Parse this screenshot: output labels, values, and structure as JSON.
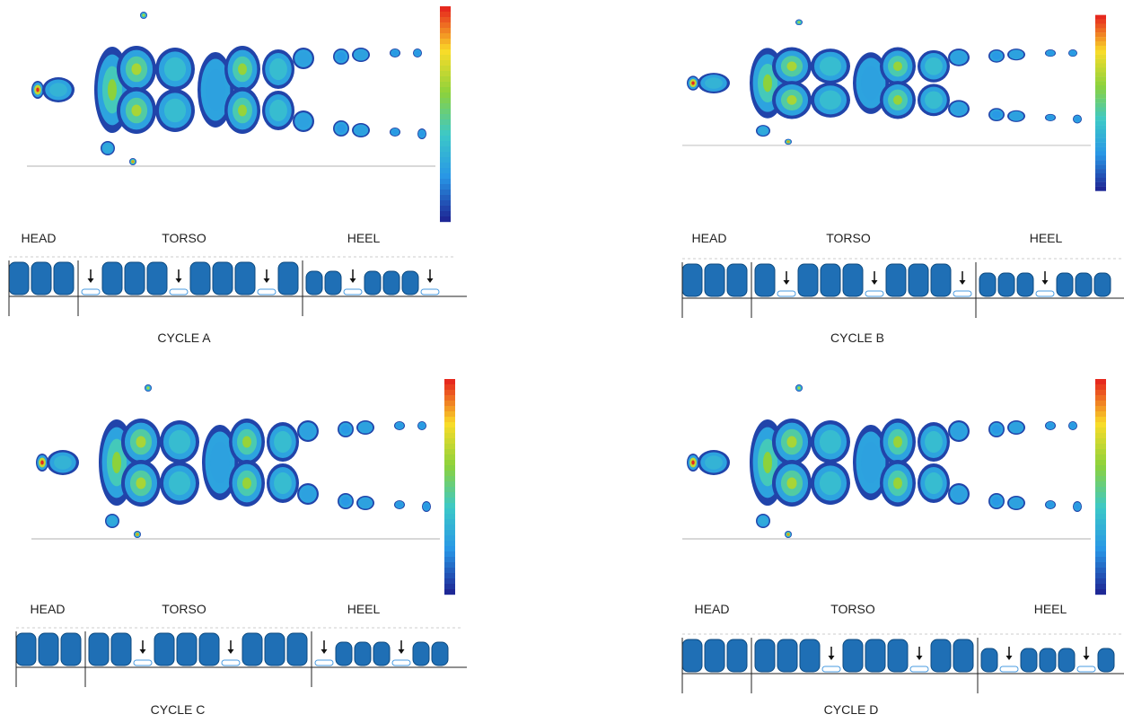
{
  "zone_labels": {
    "head": "HEAD",
    "torso": "TORSO",
    "heel": "HEEL"
  },
  "colors": {
    "cell": "#1f6fb5",
    "cell_border": "#0d4a80",
    "deflated_border": "#4a9be0",
    "arrow": "#111111",
    "line": "#222222"
  },
  "cycles": [
    {
      "label": "CYCLE A",
      "cells": [
        "I",
        "I",
        "I",
        "|",
        "D",
        "I",
        "I",
        "I",
        "D",
        "I",
        "I",
        "I",
        "D",
        "I",
        "|",
        "i",
        "i",
        "d",
        "i",
        "i",
        "i",
        "d"
      ]
    },
    {
      "label": "CYCLE B",
      "cells": [
        "I",
        "I",
        "I",
        "|",
        "I",
        "D",
        "I",
        "I",
        "I",
        "D",
        "I",
        "I",
        "I",
        "D",
        "|",
        "i",
        "i",
        "i",
        "d",
        "i",
        "i",
        "i"
      ]
    },
    {
      "label": "CYCLE C",
      "cells": [
        "I",
        "I",
        "I",
        "|",
        "I",
        "I",
        "D",
        "I",
        "I",
        "I",
        "D",
        "I",
        "I",
        "I",
        "|",
        "d",
        "i",
        "i",
        "i",
        "d",
        "i",
        "i"
      ]
    },
    {
      "label": "CYCLE D",
      "cells": [
        "I",
        "I",
        "I",
        "|",
        "I",
        "I",
        "I",
        "D",
        "I",
        "I",
        "I",
        "D",
        "I",
        "I",
        "|",
        "i",
        "d",
        "i",
        "i",
        "i",
        "d",
        "i"
      ]
    }
  ]
}
